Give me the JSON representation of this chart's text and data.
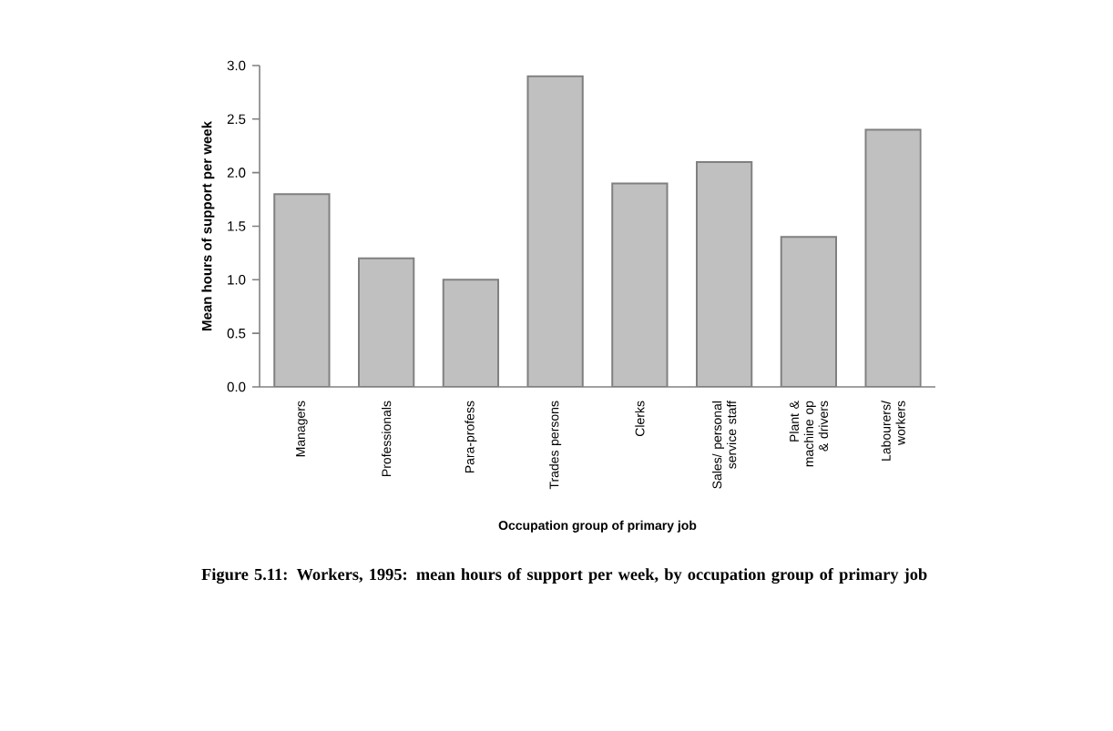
{
  "chart_data": {
    "type": "bar",
    "title": "Figure 5.11: Workers, 1995: mean hours of support per week, by occupation group of primary job",
    "xlabel": "Occupation group of primary job",
    "ylabel": "Mean hours of support per week",
    "categories": [
      "Managers",
      "Professionals",
      "Para-profess",
      "Trades persons",
      "Clerks",
      "Sales/ personal service staff",
      "Plant & machine op & drivers",
      "Labourers/ workers"
    ],
    "values": [
      1.8,
      1.2,
      1.0,
      2.9,
      1.9,
      2.1,
      1.4,
      2.4
    ],
    "color": "#c0c0c0",
    "ylim": [
      0,
      3.0
    ],
    "yticks": [
      {
        "value": 0,
        "label": "0.0"
      },
      {
        "value": 0.5,
        "label": "0.5"
      },
      {
        "value": 1,
        "label": "1.0"
      },
      {
        "value": 1.5,
        "label": "1.5"
      },
      {
        "value": 2,
        "label": "2.0"
      },
      {
        "value": 2.5,
        "label": "2.5"
      },
      {
        "value": 3,
        "label": "3.0"
      }
    ]
  }
}
